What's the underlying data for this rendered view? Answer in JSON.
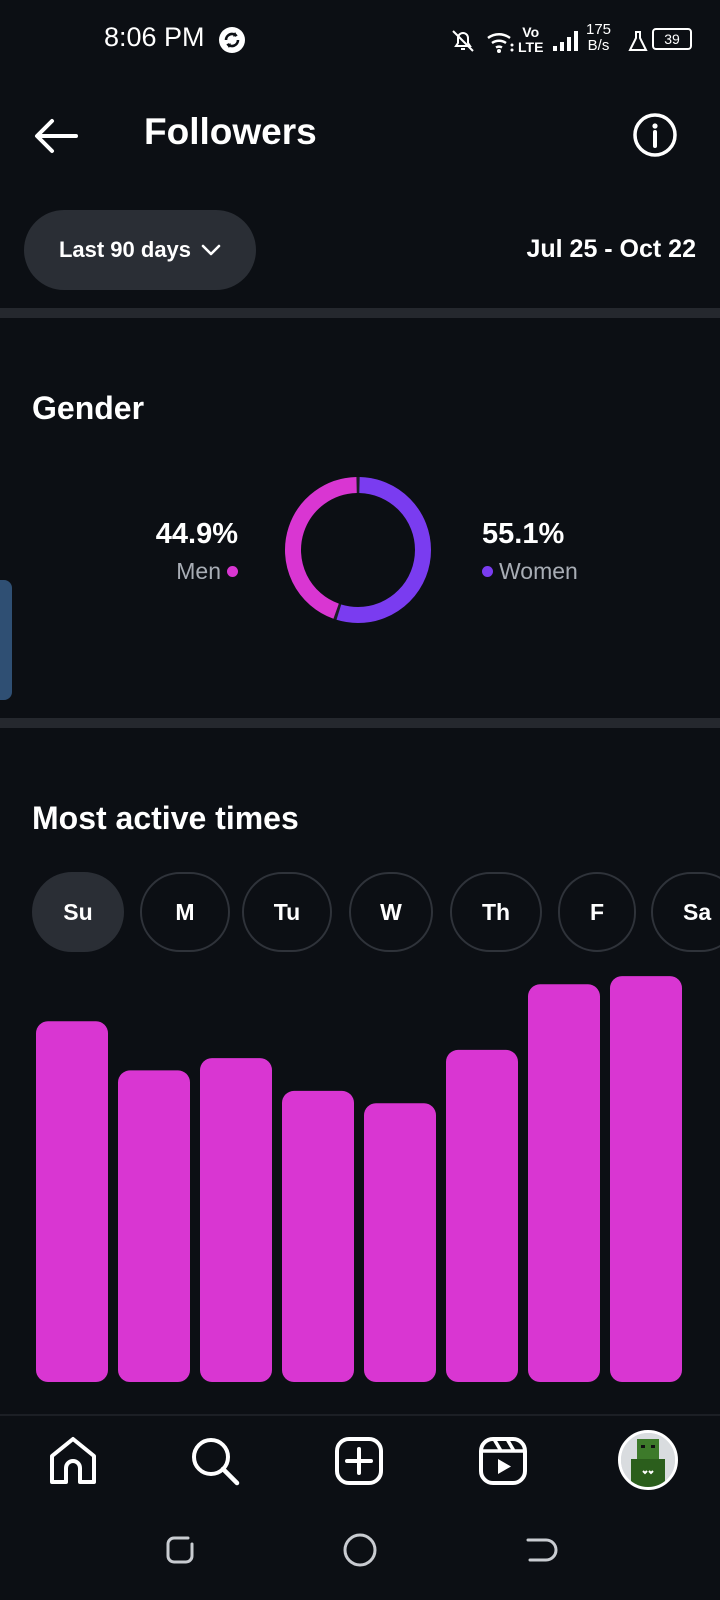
{
  "status_bar": {
    "time": "8:06 PM",
    "net_speed_value": "175",
    "net_speed_unit": "B/s",
    "volte_top": "Vo",
    "volte_bottom": "LTE",
    "battery": "39"
  },
  "header": {
    "title": "Followers"
  },
  "filter": {
    "range_label": "Last 90 days",
    "date_range": "Jul 25 - Oct 22"
  },
  "gender": {
    "title": "Gender",
    "men_pct": "44.9%",
    "men_label": "Men",
    "women_pct": "55.1%",
    "women_label": "Women",
    "men_color": "#d936d2",
    "women_color": "#7a3cf0"
  },
  "active_times": {
    "title": "Most active times",
    "days": [
      "Su",
      "M",
      "Tu",
      "W",
      "Th",
      "F",
      "Sa"
    ],
    "selected_day": "Su"
  },
  "chart_data": {
    "type": "bar",
    "categories": [
      "",
      "",
      "",
      "",
      "",
      "",
      "",
      ""
    ],
    "values": [
      88,
      76,
      79,
      71,
      68,
      81,
      97,
      99
    ],
    "ylim": [
      0,
      100
    ],
    "bar_color": "#d936d2",
    "grid": false
  },
  "bottom_nav": {
    "items": [
      "home-icon",
      "search-icon",
      "create-icon",
      "reels-icon",
      "profile-avatar"
    ]
  }
}
